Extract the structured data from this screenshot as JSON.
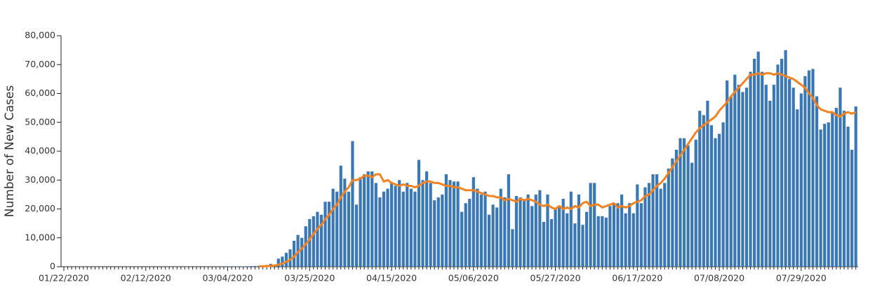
{
  "chart_data": {
    "type": "bar",
    "y_label": "Number of New Cases",
    "ylim": [
      0,
      80000
    ],
    "yticks": [
      0,
      {
        "value": 10000,
        "label": "10,000"
      },
      {
        "value": 20000,
        "label": "20,000"
      },
      {
        "value": 30000,
        "label": "30,000"
      },
      {
        "value": 40000,
        "label": "40,000"
      },
      {
        "value": 50000,
        "label": "50,000"
      },
      {
        "value": 60000,
        "label": "60,000"
      },
      {
        "value": 70000,
        "label": "70,000"
      },
      {
        "value": 80000,
        "label": "80,000"
      }
    ],
    "categories": [
      "01/22/2020",
      null,
      null,
      null,
      null,
      null,
      null,
      null,
      null,
      null,
      null,
      null,
      null,
      null,
      null,
      null,
      null,
      null,
      null,
      null,
      null,
      "02/12/2020",
      null,
      null,
      null,
      null,
      null,
      null,
      null,
      null,
      null,
      null,
      null,
      null,
      null,
      null,
      null,
      null,
      null,
      null,
      null,
      null,
      "03/04/2020",
      null,
      null,
      null,
      null,
      null,
      null,
      null,
      null,
      null,
      null,
      null,
      null,
      null,
      null,
      null,
      null,
      null,
      null,
      null,
      null,
      "03/25/2020",
      null,
      null,
      null,
      null,
      null,
      null,
      null,
      null,
      null,
      null,
      null,
      null,
      null,
      null,
      null,
      null,
      null,
      null,
      null,
      null,
      "04/15/2020",
      null,
      null,
      null,
      null,
      null,
      null,
      null,
      null,
      null,
      null,
      null,
      null,
      null,
      null,
      null,
      null,
      null,
      null,
      null,
      null,
      "05/06/2020",
      null,
      null,
      null,
      null,
      null,
      null,
      null,
      null,
      null,
      null,
      null,
      null,
      null,
      null,
      null,
      null,
      null,
      null,
      null,
      null,
      "05/27/2020",
      null,
      null,
      null,
      null,
      null,
      null,
      null,
      null,
      null,
      null,
      null,
      null,
      null,
      null,
      null,
      null,
      null,
      null,
      null,
      null,
      "06/17/2020",
      null,
      null,
      null,
      null,
      null,
      null,
      null,
      null,
      null,
      null,
      null,
      null,
      null,
      null,
      null,
      null,
      null,
      null,
      null,
      null,
      "07/08/2020",
      null,
      null,
      null,
      null,
      null,
      null,
      null,
      null,
      null,
      null,
      null,
      null,
      null,
      null,
      null,
      null,
      null,
      null,
      null,
      null,
      "07/29/2020",
      null,
      null,
      null,
      null,
      null,
      null,
      null,
      null,
      null,
      null,
      null,
      null,
      null,
      null
    ],
    "series": [
      {
        "type": "bar",
        "color": "#3a78b5",
        "values": [
          1,
          0,
          0,
          1,
          0,
          1,
          0,
          0,
          0,
          1,
          0,
          0,
          0,
          0,
          1,
          0,
          0,
          0,
          0,
          0,
          0,
          0,
          0,
          0,
          0,
          0,
          0,
          0,
          0,
          0,
          0,
          0,
          0,
          0,
          1,
          2,
          3,
          5,
          8,
          10,
          20,
          25,
          35,
          50,
          60,
          80,
          110,
          150,
          180,
          250,
          300,
          450,
          600,
          1000,
          500,
          2800,
          3500,
          4800,
          6000,
          9000,
          11000,
          10000,
          14000,
          16500,
          17500,
          19000,
          18000,
          22500,
          22500,
          27000,
          26000,
          35000,
          30500,
          26000,
          43500,
          21500,
          31000,
          32000,
          33000,
          33000,
          29000,
          24000,
          26000,
          27000,
          29000,
          28000,
          30000,
          26000,
          29000,
          27000,
          26000,
          37000,
          30000,
          33000,
          29000,
          23000,
          24000,
          25000,
          32000,
          30000,
          29500,
          29500,
          19000,
          22000,
          23500,
          31000,
          27000,
          25000,
          26000,
          18000,
          21500,
          20500,
          27000,
          24000,
          32000,
          13000,
          24500,
          24000,
          23000,
          25000,
          21000,
          25000,
          26500,
          15500,
          25000,
          16500,
          20000,
          21000,
          23500,
          18500,
          26000,
          15000,
          25000,
          14500,
          19000,
          29000,
          29000,
          17500,
          17500,
          17000,
          21000,
          22000,
          22000,
          25000,
          18500,
          22000,
          18500,
          28500,
          22000,
          27500,
          29000,
          32000,
          32000,
          27000,
          29000,
          34000,
          37500,
          40500,
          44500,
          44500,
          42000,
          36000,
          44000,
          54000,
          52500,
          57500,
          49000,
          44500,
          46000,
          50000,
          64500,
          59000,
          66500,
          63000,
          60500,
          62000,
          67500,
          72000,
          74500,
          67500,
          63000,
          57500,
          63000,
          70000,
          72000,
          75000,
          65000,
          62000,
          54500,
          60000,
          66000,
          68000,
          68500,
          59000,
          47500,
          49500,
          50000,
          53500,
          55000,
          62000,
          54000,
          48500,
          40500,
          55500
        ]
      },
      {
        "type": "line",
        "color": "#f58220",
        "values": [
          null,
          null,
          null,
          null,
          null,
          null,
          null,
          null,
          null,
          null,
          null,
          null,
          null,
          null,
          null,
          null,
          null,
          null,
          null,
          null,
          null,
          null,
          null,
          null,
          null,
          null,
          null,
          null,
          null,
          null,
          null,
          null,
          null,
          null,
          null,
          null,
          null,
          null,
          null,
          null,
          null,
          null,
          null,
          null,
          null,
          null,
          null,
          null,
          null,
          null,
          100,
          150,
          200,
          300,
          400,
          700,
          1100,
          1700,
          2400,
          3500,
          5000,
          6300,
          7800,
          9500,
          11400,
          13100,
          14500,
          16500,
          18000,
          20000,
          21500,
          24000,
          26000,
          27500,
          30000,
          30000,
          30500,
          31500,
          31500,
          31000,
          32000,
          32000,
          29500,
          30000,
          29000,
          28500,
          28000,
          28500,
          28000,
          28000,
          27500,
          28000,
          29000,
          29500,
          29500,
          29000,
          29000,
          28500,
          28000,
          28000,
          27500,
          27500,
          27000,
          26500,
          26500,
          26500,
          26000,
          25500,
          25000,
          24500,
          24500,
          24000,
          24000,
          23000,
          23500,
          23000,
          22500,
          23500,
          23000,
          23500,
          23000,
          22500,
          21500,
          21000,
          21500,
          20500,
          20000,
          21000,
          20000,
          20500,
          20000,
          21000,
          20500,
          22000,
          22500,
          21000,
          21500,
          21500,
          20500,
          21000,
          21500,
          22000,
          20500,
          21000,
          20500,
          21000,
          22000,
          22500,
          23000,
          24500,
          25000,
          26500,
          28000,
          29000,
          30500,
          32500,
          34500,
          36500,
          38500,
          40500,
          42500,
          44500,
          46500,
          48000,
          49000,
          50000,
          51000,
          52000,
          54000,
          55500,
          57000,
          59000,
          60500,
          62000,
          63500,
          65000,
          66500,
          66500,
          67000,
          66500,
          67000,
          67000,
          66500,
          67000,
          66500,
          66000,
          65500,
          65000,
          64000,
          63000,
          62000,
          60000,
          58500,
          56000,
          54500,
          54000,
          53500,
          53500,
          52500,
          52000,
          53000,
          53500,
          53000,
          53500
        ]
      }
    ]
  }
}
